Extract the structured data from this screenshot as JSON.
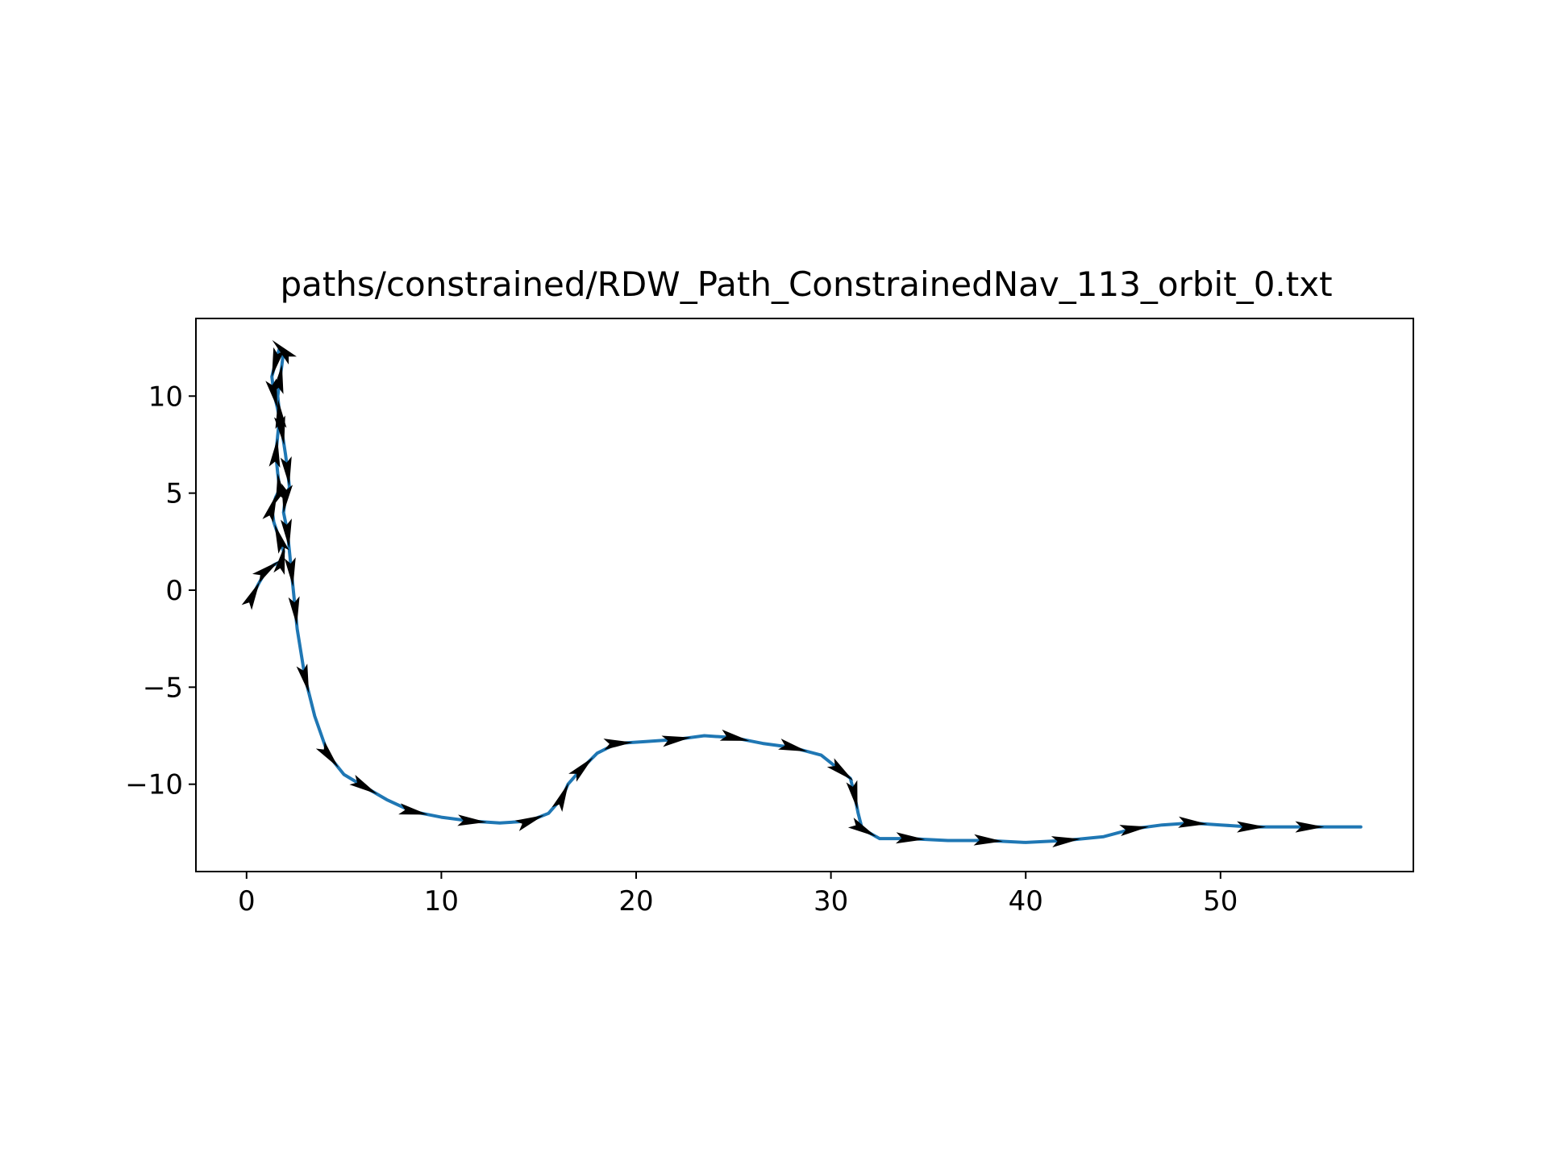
{
  "chart_data": {
    "type": "line",
    "title": "paths/constrained/RDW_Path_ConstrainedNav_113_orbit_0.txt",
    "xlabel": "",
    "ylabel": "",
    "xlim": [
      -2.6,
      59.9
    ],
    "ylim": [
      -14.5,
      14.0
    ],
    "xticks": [
      0,
      10,
      20,
      30,
      40,
      50
    ],
    "yticks": [
      -10,
      -5,
      0,
      5,
      10
    ],
    "xtick_labels": [
      "0",
      "10",
      "20",
      "30",
      "40",
      "50"
    ],
    "ytick_labels": [
      "−10",
      "−5",
      "0",
      "5",
      "10"
    ],
    "grid": false,
    "line_color": "#1f77b4",
    "arrow_color": "#000000",
    "series": [
      {
        "x": [
          0.3,
          0.6,
          1.0,
          1.4,
          1.8,
          1.9,
          1.7,
          1.4,
          1.3,
          1.5,
          1.7,
          1.6,
          1.5,
          1.6,
          1.7,
          1.6,
          1.7,
          1.8,
          1.9,
          1.7,
          1.5,
          1.3,
          1.4,
          1.6,
          1.8,
          2.0,
          2.1,
          2.2,
          2.0,
          1.9,
          2.1,
          2.2,
          2.3,
          2.4,
          2.5,
          2.6,
          3.0,
          3.5,
          4.2,
          5.0,
          6.0,
          7.2,
          8.5,
          10.0,
          11.5,
          13.0,
          14.5,
          15.5,
          16.2,
          16.5,
          17.2,
          18.0,
          19.0,
          20.5,
          22.0,
          23.5,
          25.0,
          26.5,
          28.0,
          29.5,
          30.5,
          31.0,
          31.2,
          31.4,
          31.6,
          32.5,
          34.0,
          36.0,
          38.0,
          40.0,
          42.0,
          44.0,
          45.5,
          47.0,
          48.5,
          50.0,
          51.5,
          53.0,
          54.5,
          56.0,
          57.2
        ],
        "y": [
          -0.3,
          0.3,
          1.0,
          1.3,
          1.5,
          2.0,
          2.6,
          3.5,
          4.2,
          4.8,
          5.2,
          6.0,
          7.0,
          8.0,
          9.0,
          10.0,
          10.8,
          11.5,
          12.3,
          12.5,
          11.8,
          11.0,
          10.2,
          9.3,
          8.3,
          7.0,
          6.2,
          5.3,
          4.8,
          4.0,
          3.0,
          2.0,
          1.0,
          0.0,
          -1.0,
          -2.0,
          -4.5,
          -6.5,
          -8.5,
          -9.5,
          -10.1,
          -10.8,
          -11.4,
          -11.7,
          -11.9,
          -12.0,
          -11.9,
          -11.5,
          -10.7,
          -10.0,
          -9.2,
          -8.4,
          -7.9,
          -7.8,
          -7.7,
          -7.5,
          -7.6,
          -7.9,
          -8.1,
          -8.5,
          -9.3,
          -9.7,
          -10.5,
          -11.5,
          -12.3,
          -12.8,
          -12.8,
          -12.9,
          -12.9,
          -13.0,
          -12.9,
          -12.7,
          -12.3,
          -12.1,
          -12.0,
          -12.1,
          -12.2,
          -12.2,
          -12.2,
          -12.2,
          -12.2
        ]
      }
    ]
  }
}
